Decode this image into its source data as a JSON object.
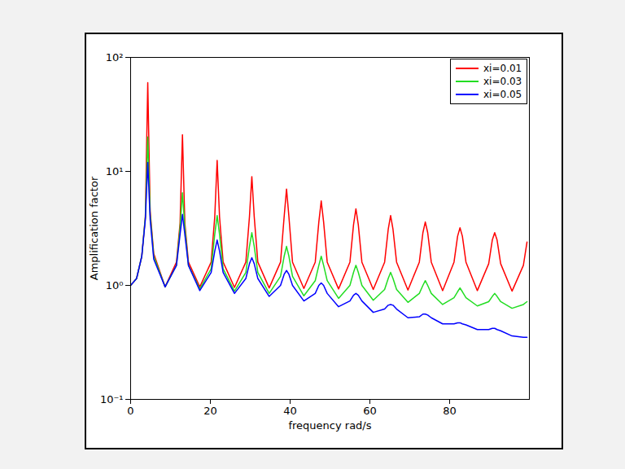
{
  "chart_data": {
    "type": "line",
    "x_label": "frequency rad/s",
    "y_label": "Amplification factor",
    "log": "y",
    "grid": false,
    "legend": "top-right",
    "xlim": [
      0,
      100
    ],
    "xticks": [
      0,
      20,
      40,
      60,
      80
    ],
    "ylim": [
      0.1,
      100
    ],
    "yticks": [
      {
        "value": 0.1,
        "label": "10⁻¹"
      },
      {
        "value": 1,
        "label": "10⁰"
      },
      {
        "value": 10,
        "label": "10¹"
      },
      {
        "value": 100,
        "label": "10²"
      }
    ],
    "x": [
      0,
      1.5,
      2.8,
      3.7,
      4.3,
      4.9,
      5.8,
      8.65,
      11.5,
      12.4,
      13.0,
      13.6,
      14.5,
      17.35,
      20.2,
      21.1,
      21.7,
      22.3,
      23.2,
      26.05,
      28.9,
      29.8,
      30.4,
      31.0,
      31.9,
      34.75,
      37.6,
      38.5,
      39.1,
      39.7,
      40.6,
      43.45,
      46.3,
      47.2,
      47.8,
      48.4,
      49.3,
      52.15,
      55.0,
      55.9,
      56.5,
      57.1,
      58.0,
      60.85,
      63.7,
      64.6,
      65.2,
      65.8,
      66.7,
      69.55,
      72.4,
      73.3,
      73.9,
      74.5,
      75.4,
      78.25,
      81.1,
      82.0,
      82.6,
      83.2,
      84.1,
      86.95,
      89.8,
      90.7,
      91.3,
      91.9,
      92.8,
      95.65,
      98.5,
      99.4
    ],
    "series": [
      {
        "name": "xi=0.01",
        "color": "#ff0000",
        "values": [
          1.0,
          1.15,
          1.8,
          4,
          60,
          4.5,
          1.9,
          0.97,
          1.6,
          3.5,
          21,
          3.5,
          1.6,
          0.97,
          1.6,
          4,
          12.5,
          4,
          1.6,
          0.96,
          1.6,
          4,
          9,
          4,
          1.6,
          0.95,
          1.6,
          4,
          7,
          4,
          1.6,
          0.94,
          1.6,
          3.6,
          5.5,
          3.6,
          1.6,
          0.93,
          1.6,
          3.4,
          4.7,
          3.4,
          1.6,
          0.92,
          1.6,
          3.1,
          4.1,
          3.1,
          1.6,
          0.91,
          1.6,
          2.9,
          3.6,
          2.9,
          1.6,
          0.9,
          1.6,
          2.7,
          3.2,
          2.7,
          1.6,
          0.9,
          1.55,
          2.5,
          2.9,
          2.5,
          1.55,
          0.89,
          1.5,
          2.4
        ]
      },
      {
        "name": "xi=0.03",
        "color": "#22dd22",
        "values": [
          1.0,
          1.15,
          1.8,
          4,
          20,
          4.2,
          1.8,
          0.97,
          1.5,
          3.2,
          6.5,
          3.2,
          1.5,
          0.93,
          1.4,
          2.8,
          4.1,
          2.8,
          1.4,
          0.89,
          1.3,
          2.2,
          2.9,
          2.2,
          1.3,
          0.85,
          1.2,
          1.8,
          2.2,
          1.8,
          1.2,
          0.81,
          1.1,
          1.5,
          1.8,
          1.5,
          1.1,
          0.77,
          1.0,
          1.3,
          1.5,
          1.3,
          1.0,
          0.74,
          0.92,
          1.15,
          1.3,
          1.15,
          0.92,
          0.71,
          0.85,
          1.0,
          1.1,
          1.0,
          0.85,
          0.68,
          0.78,
          0.88,
          0.95,
          0.88,
          0.78,
          0.66,
          0.72,
          0.8,
          0.85,
          0.8,
          0.72,
          0.63,
          0.68,
          0.72
        ]
      },
      {
        "name": "xi=0.05",
        "color": "#0000ff",
        "values": [
          1.0,
          1.15,
          1.8,
          3.8,
          12,
          3.8,
          1.7,
          0.97,
          1.5,
          2.8,
          4.2,
          2.8,
          1.5,
          0.9,
          1.3,
          2.0,
          2.5,
          2.0,
          1.3,
          0.85,
          1.15,
          1.55,
          1.75,
          1.55,
          1.15,
          0.8,
          1.0,
          1.25,
          1.35,
          1.25,
          1.0,
          0.73,
          0.85,
          1.0,
          1.05,
          1.0,
          0.85,
          0.65,
          0.73,
          0.82,
          0.85,
          0.82,
          0.73,
          0.58,
          0.62,
          0.67,
          0.68,
          0.67,
          0.62,
          0.52,
          0.53,
          0.56,
          0.56,
          0.55,
          0.52,
          0.46,
          0.46,
          0.47,
          0.47,
          0.46,
          0.45,
          0.41,
          0.41,
          0.42,
          0.42,
          0.41,
          0.4,
          0.36,
          0.35,
          0.35
        ]
      }
    ]
  }
}
